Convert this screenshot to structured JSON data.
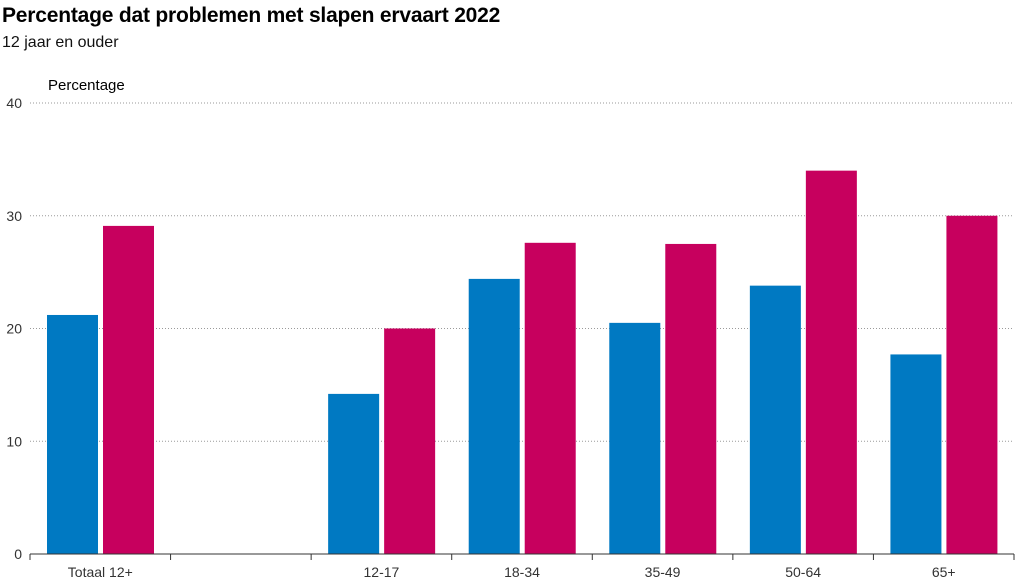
{
  "chart_data": {
    "type": "bar",
    "title": "Percentage dat problemen met slapen ervaart 2022",
    "subtitle": "12 jaar en ouder",
    "ylabel": "Percentage",
    "ylim": [
      0,
      40
    ],
    "yticks": [
      0,
      10,
      20,
      30,
      40
    ],
    "categories": [
      "Totaal 12+",
      "",
      "12-17",
      "18-34",
      "35-49",
      "50-64",
      "65+"
    ],
    "series": [
      {
        "color": "#0079c2",
        "values": [
          21.2,
          null,
          14.2,
          24.4,
          20.5,
          23.8,
          17.7
        ]
      },
      {
        "color": "#c7005e",
        "values": [
          29.1,
          null,
          20.0,
          27.6,
          27.5,
          34.0,
          30.0
        ]
      }
    ],
    "grid": true,
    "legend": "none"
  }
}
